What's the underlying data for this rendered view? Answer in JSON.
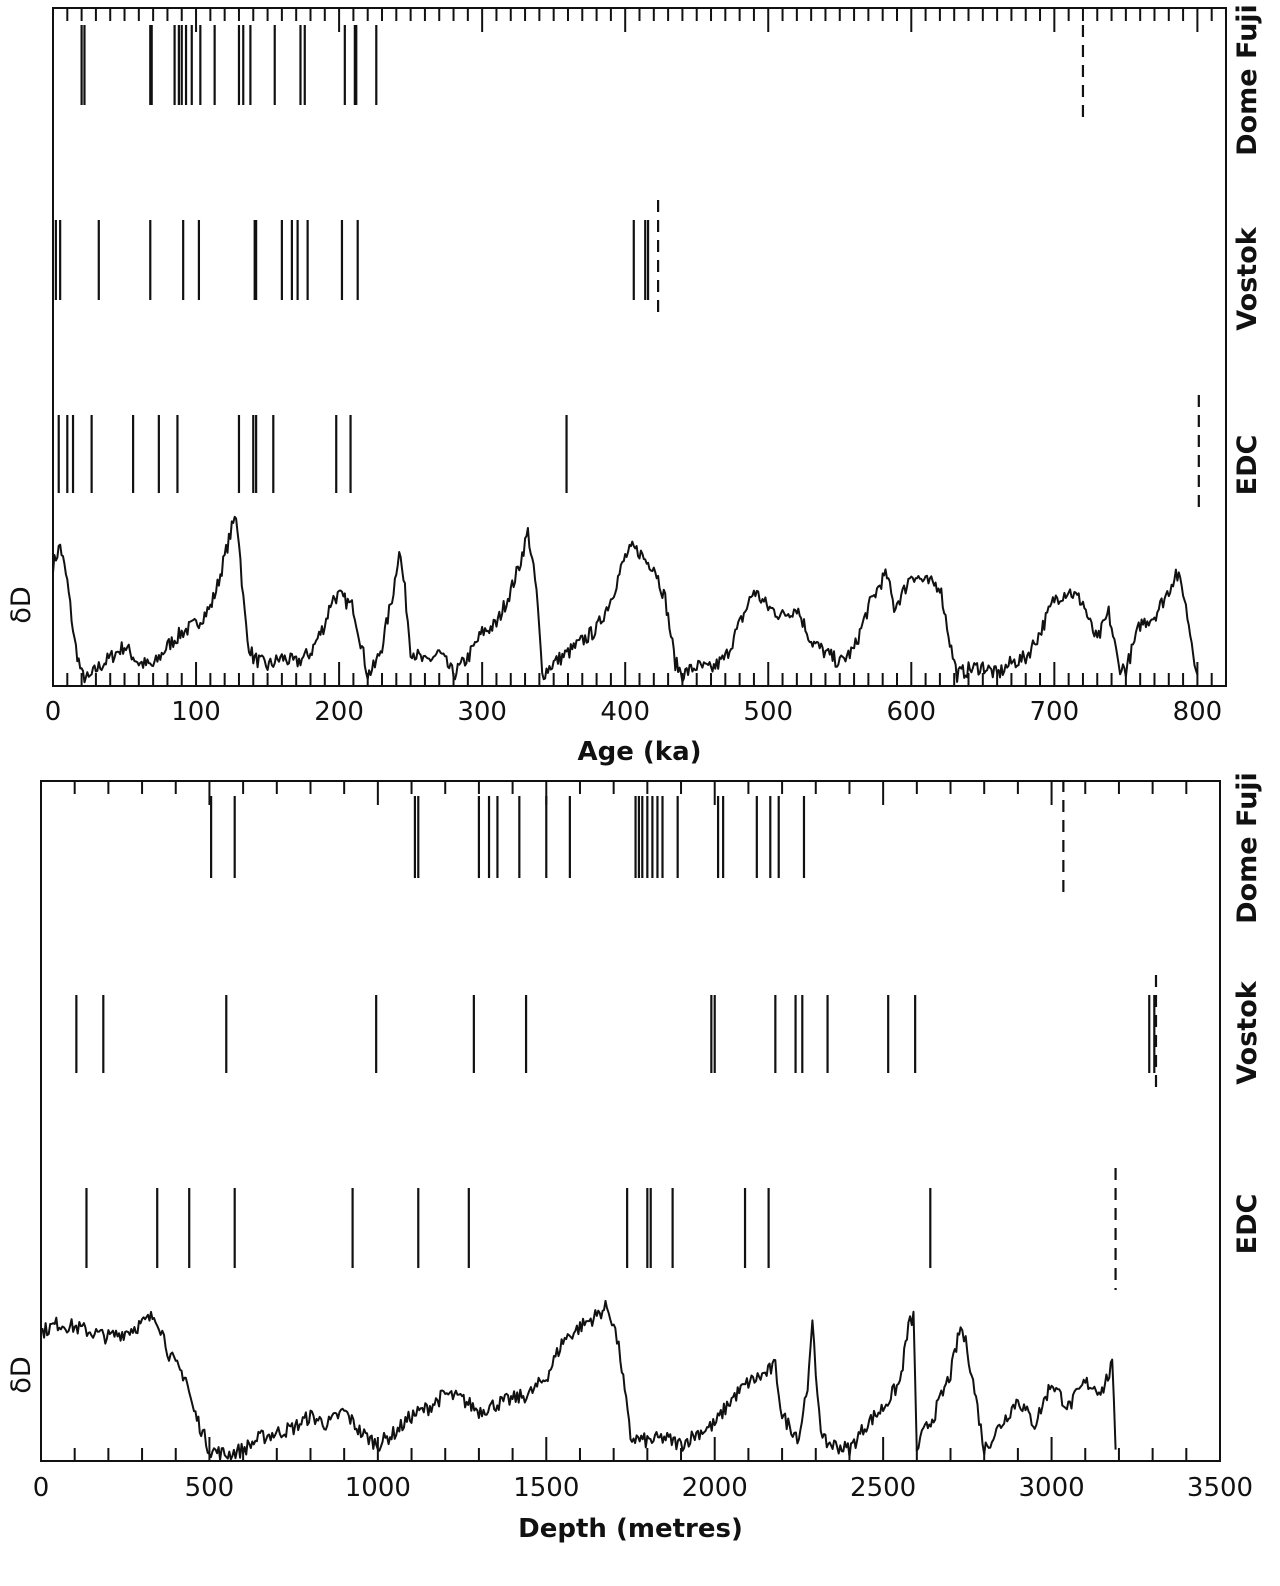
{
  "colors": {
    "ink": "#111111",
    "background": "#ffffff"
  },
  "chart_data": [
    {
      "type": "event-strips",
      "xlabel": "Age (ka)",
      "ylabel": "δD",
      "xlim": [
        0,
        820
      ],
      "xticks": [
        0,
        100,
        200,
        300,
        400,
        500,
        600,
        700,
        800
      ],
      "minor_tick_step": 10,
      "grid": false,
      "rows": [
        {
          "name": "Dome Fuji",
          "events": [
            20,
            22,
            68,
            69,
            85,
            88,
            90,
            93,
            97,
            103,
            113,
            130,
            133,
            138,
            155,
            173,
            176,
            204,
            211,
            212,
            226
          ],
          "dashed_event": 720
        },
        {
          "name": "Vostok",
          "events": [
            2,
            5,
            32,
            68,
            91,
            102,
            141,
            142,
            160,
            167,
            171,
            178,
            202,
            213,
            406,
            414,
            416
          ],
          "dashed_event": 423
        },
        {
          "name": "EDC",
          "events": [
            4,
            10,
            14,
            27,
            56,
            74,
            87,
            130,
            140,
            142,
            154,
            198,
            208,
            359
          ],
          "dashed_event": 801
        }
      ],
      "delta_d_series": {
        "name": "δD",
        "x": [
          0,
          5,
          10,
          15,
          20,
          25,
          30,
          40,
          50,
          60,
          70,
          80,
          90,
          100,
          110,
          115,
          120,
          125,
          128,
          130,
          133,
          136,
          140,
          150,
          160,
          170,
          180,
          190,
          195,
          200,
          210,
          215,
          220,
          225,
          230,
          238,
          242,
          246,
          250,
          260,
          270,
          280,
          290,
          300,
          310,
          320,
          326,
          332,
          338,
          342,
          350,
          360,
          370,
          380,
          390,
          400,
          405,
          410,
          415,
          420,
          428,
          435,
          440,
          450,
          460,
          470,
          480,
          490,
          500,
          510,
          520,
          530,
          540,
          550,
          560,
          570,
          580,
          583,
          588,
          595,
          600,
          610,
          620,
          628,
          632,
          640,
          650,
          660,
          670,
          680,
          690,
          700,
          710,
          720,
          725,
          730,
          738,
          745,
          750,
          760,
          770,
          780,
          785,
          790,
          795,
          800
        ],
        "y": [
          0.7,
          0.82,
          0.6,
          0.25,
          0.05,
          0.02,
          0.08,
          0.15,
          0.22,
          0.12,
          0.1,
          0.22,
          0.3,
          0.35,
          0.45,
          0.58,
          0.75,
          0.92,
          1.0,
          0.85,
          0.5,
          0.25,
          0.15,
          0.1,
          0.15,
          0.12,
          0.18,
          0.35,
          0.5,
          0.52,
          0.45,
          0.25,
          0.05,
          0.1,
          0.22,
          0.55,
          0.8,
          0.55,
          0.2,
          0.12,
          0.18,
          0.05,
          0.15,
          0.3,
          0.35,
          0.55,
          0.7,
          0.9,
          0.55,
          0.05,
          0.12,
          0.18,
          0.25,
          0.32,
          0.5,
          0.75,
          0.8,
          0.78,
          0.72,
          0.7,
          0.5,
          0.12,
          0.05,
          0.1,
          0.08,
          0.15,
          0.35,
          0.55,
          0.45,
          0.4,
          0.45,
          0.25,
          0.18,
          0.12,
          0.2,
          0.45,
          0.62,
          0.64,
          0.45,
          0.55,
          0.65,
          0.6,
          0.58,
          0.2,
          0.05,
          0.08,
          0.1,
          0.05,
          0.12,
          0.15,
          0.3,
          0.5,
          0.55,
          0.48,
          0.35,
          0.25,
          0.42,
          0.1,
          0.08,
          0.35,
          0.4,
          0.55,
          0.66,
          0.55,
          0.3,
          0.05
        ]
      }
    },
    {
      "type": "event-strips",
      "xlabel": "Depth (metres)",
      "ylabel": "δD",
      "xlim": [
        0,
        3500
      ],
      "xticks": [
        0,
        500,
        1000,
        1500,
        2000,
        2500,
        3000,
        3500
      ],
      "minor_tick_step": 100,
      "grid": false,
      "rows": [
        {
          "name": "Dome Fuji",
          "events": [
            505,
            575,
            1110,
            1120,
            1300,
            1330,
            1355,
            1420,
            1500,
            1570,
            1765,
            1775,
            1785,
            1800,
            1815,
            1830,
            1845,
            1890,
            2010,
            2025,
            2125,
            2165,
            2190,
            2265
          ],
          "dashed_event": 3035
        },
        {
          "name": "Vostok",
          "events": [
            105,
            185,
            550,
            995,
            1285,
            1440,
            1990,
            2000,
            2180,
            2240,
            2260,
            2335,
            2515,
            2595,
            3290,
            3305
          ],
          "dashed_event": 3310
        },
        {
          "name": "EDC",
          "events": [
            135,
            345,
            440,
            575,
            925,
            1120,
            1270,
            1740,
            1800,
            1810,
            1875,
            2090,
            2160,
            2640
          ],
          "dashed_event": 3190
        }
      ],
      "delta_d_series": {
        "name": "δD",
        "x": [
          0,
          50,
          100,
          150,
          200,
          250,
          300,
          340,
          360,
          380,
          400,
          430,
          450,
          480,
          500,
          550,
          600,
          650,
          700,
          750,
          800,
          850,
          900,
          950,
          1000,
          1050,
          1100,
          1150,
          1200,
          1250,
          1300,
          1350,
          1400,
          1450,
          1500,
          1550,
          1600,
          1650,
          1680,
          1700,
          1720,
          1750,
          1800,
          1850,
          1900,
          1950,
          2000,
          2050,
          2100,
          2150,
          2180,
          2200,
          2250,
          2280,
          2290,
          2300,
          2320,
          2350,
          2400,
          2450,
          2500,
          2550,
          2575,
          2590,
          2600,
          2620,
          2650,
          2700,
          2730,
          2750,
          2780,
          2800,
          2850,
          2900,
          2950,
          3000,
          3050,
          3100,
          3150,
          3180,
          3190
        ],
        "y": [
          0.75,
          0.8,
          0.78,
          0.75,
          0.72,
          0.75,
          0.8,
          0.85,
          0.75,
          0.62,
          0.55,
          0.48,
          0.3,
          0.15,
          0.05,
          0.02,
          0.05,
          0.12,
          0.15,
          0.18,
          0.25,
          0.2,
          0.28,
          0.15,
          0.08,
          0.15,
          0.25,
          0.3,
          0.38,
          0.35,
          0.28,
          0.32,
          0.35,
          0.38,
          0.48,
          0.7,
          0.78,
          0.85,
          0.9,
          0.8,
          0.6,
          0.12,
          0.1,
          0.12,
          0.08,
          0.15,
          0.2,
          0.35,
          0.45,
          0.5,
          0.55,
          0.25,
          0.12,
          0.5,
          0.8,
          0.5,
          0.1,
          0.08,
          0.05,
          0.2,
          0.3,
          0.45,
          0.78,
          0.85,
          0.05,
          0.15,
          0.25,
          0.5,
          0.78,
          0.65,
          0.3,
          0.05,
          0.2,
          0.35,
          0.2,
          0.45,
          0.3,
          0.45,
          0.4,
          0.55,
          0.05
        ]
      }
    }
  ]
}
